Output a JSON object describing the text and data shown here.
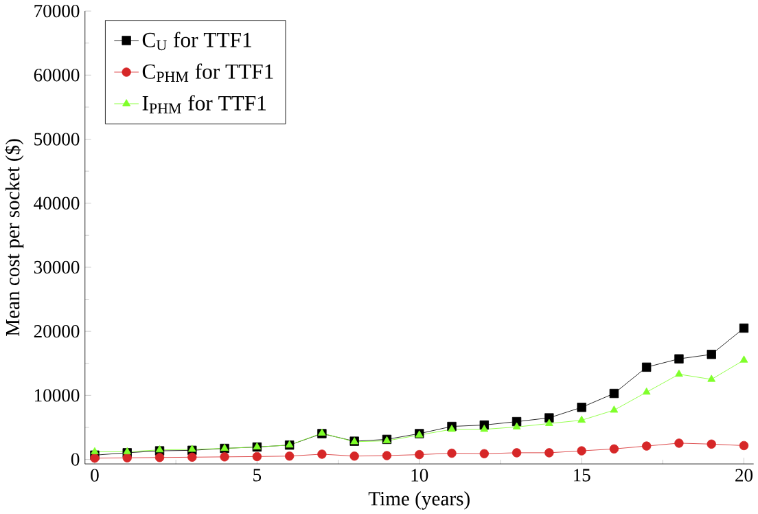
{
  "chart_data": {
    "type": "line",
    "xlabel": "Time (years)",
    "ylabel": "Mean cost per socket ($)",
    "x": [
      0,
      1,
      2,
      3,
      4,
      5,
      6,
      7,
      8,
      9,
      10,
      11,
      12,
      13,
      14,
      15,
      16,
      17,
      18,
      19,
      20
    ],
    "series": [
      {
        "name": "C$_{U}$ for TTF1",
        "color": "#000000",
        "marker": "square",
        "values": [
          670,
          1040,
          1340,
          1420,
          1720,
          1940,
          2240,
          4030,
          2840,
          3130,
          4030,
          5150,
          5370,
          5900,
          6490,
          8130,
          10300,
          14400,
          15700,
          16400,
          20500
        ]
      },
      {
        "name": "C$_{PHM}$ for TTF1",
        "color": "#d62728",
        "marker": "circle",
        "values": [
          200,
          250,
          300,
          350,
          400,
          450,
          520,
          820,
          520,
          600,
          750,
          970,
          900,
          1040,
          1040,
          1340,
          1640,
          2090,
          2540,
          2390,
          2160
        ]
      },
      {
        "name": "I$_{PHM}$ for TTF1",
        "color": "#7fff2a",
        "marker": "triangle",
        "values": [
          1190,
          1190,
          1490,
          1570,
          1720,
          1940,
          2240,
          4100,
          2760,
          2910,
          3810,
          4700,
          4700,
          5070,
          5600,
          6120,
          7690,
          10500,
          13300,
          12500,
          15500
        ]
      }
    ],
    "xlim": [
      -0.3,
      20.3
    ],
    "ylim": [
      -700,
      70000
    ],
    "xticks": [
      0,
      5,
      10,
      15,
      20
    ],
    "yticks": [
      0,
      10000,
      20000,
      30000,
      40000,
      50000,
      60000,
      70000
    ],
    "legend": "top left",
    "line_style": "solid"
  }
}
